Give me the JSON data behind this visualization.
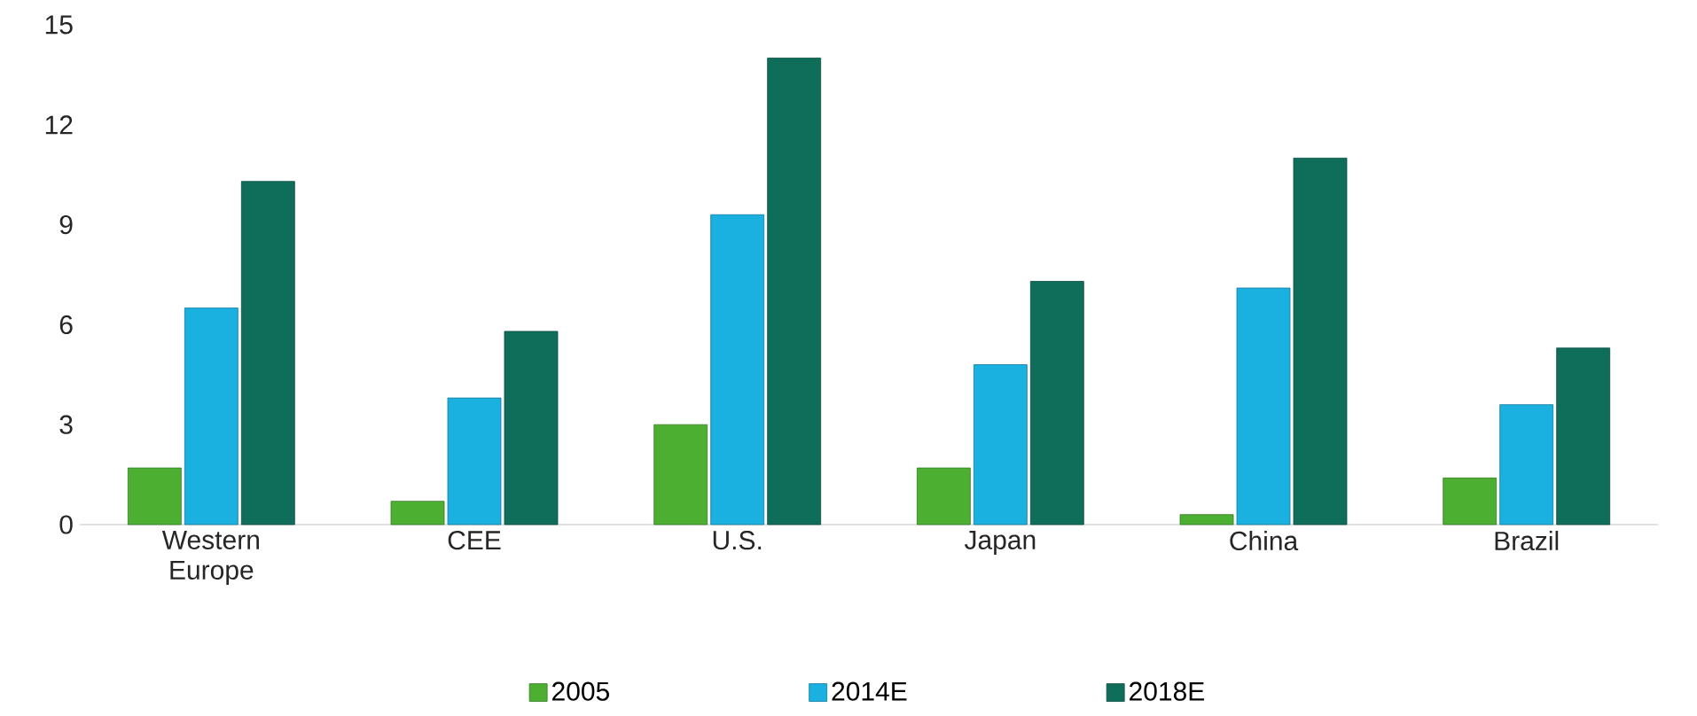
{
  "chart_data": {
    "type": "bar",
    "categories": [
      "Western Europe",
      "CEE",
      "U.S.",
      "Japan",
      "China",
      "Brazil"
    ],
    "series": [
      {
        "name": "2005",
        "color": "#4caf32",
        "values": [
          1.7,
          0.7,
          3.0,
          1.7,
          0.3,
          1.4
        ]
      },
      {
        "name": "2014E",
        "color": "#1ab0e0",
        "values": [
          6.5,
          3.8,
          9.3,
          4.8,
          7.1,
          3.6
        ]
      },
      {
        "name": "2018E",
        "color": "#0f6e5a",
        "values": [
          10.3,
          5.8,
          14.0,
          7.3,
          11.0,
          5.3
        ]
      }
    ],
    "ylim": [
      0,
      15
    ],
    "yticks": [
      0,
      3,
      6,
      9,
      12,
      15
    ],
    "grid": false,
    "legend": "bottom"
  }
}
